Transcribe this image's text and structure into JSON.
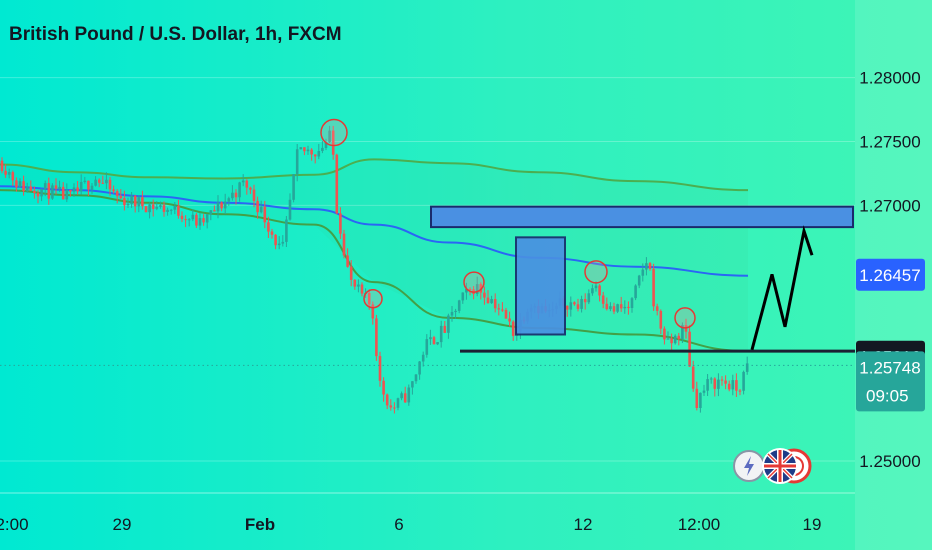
{
  "title": "British Pound / U.S. Dollar, 1h, FXCM",
  "chart_data": {
    "type": "candlestick",
    "title": "British Pound / U.S. Dollar, 1h, FXCM",
    "symbol": "GBPUSD",
    "timeframe": "1h",
    "ylim": [
      1.2475,
      1.282
    ],
    "y_ticks": [
      "1.28000",
      "1.27500",
      "1.27000",
      "1.25000"
    ],
    "y_tick_values": [
      1.28,
      1.275,
      1.27,
      1.25
    ],
    "x_ticks": [
      "2:00",
      "29",
      "Feb",
      "6",
      "12",
      "12:00",
      "19"
    ],
    "price_tags": [
      {
        "label": "1.26457",
        "value": 1.26457,
        "color": "#2962ff"
      },
      {
        "label": "1.25816",
        "value": 1.25816,
        "color": "#131722"
      },
      {
        "label": "1.25748",
        "value": 1.25748,
        "color": "#26a69a",
        "countdown": "09:05"
      }
    ],
    "last_price": 1.25748,
    "ma_lines": [
      {
        "color": "#4caf50",
        "points": [
          [
            1.2732,
            0.0
          ],
          [
            1.2726,
            0.1
          ],
          [
            1.2722,
            0.2
          ],
          [
            1.2721,
            0.3
          ],
          [
            1.2724,
            0.42
          ],
          [
            1.2736,
            0.5
          ],
          [
            1.2733,
            0.6
          ],
          [
            1.2726,
            0.72
          ],
          [
            1.2719,
            0.85
          ],
          [
            1.2712,
            1.0
          ]
        ]
      },
      {
        "color": "#2962ff",
        "points": [
          [
            1.2715,
            0.0
          ],
          [
            1.2712,
            0.1
          ],
          [
            1.2707,
            0.2
          ],
          [
            1.2702,
            0.3
          ],
          [
            1.2697,
            0.42
          ],
          [
            1.2685,
            0.5
          ],
          [
            1.2671,
            0.6
          ],
          [
            1.2659,
            0.72
          ],
          [
            1.2652,
            0.85
          ],
          [
            1.2645,
            1.0
          ]
        ]
      },
      {
        "color": "#43a047",
        "points": [
          [
            1.2712,
            0.0
          ],
          [
            1.2708,
            0.1
          ],
          [
            1.2702,
            0.2
          ],
          [
            1.2693,
            0.3
          ],
          [
            1.2685,
            0.42
          ],
          [
            1.264,
            0.5
          ],
          [
            1.2612,
            0.6
          ],
          [
            1.2604,
            0.72
          ],
          [
            1.2599,
            0.85
          ],
          [
            1.2586,
            1.0
          ]
        ]
      }
    ],
    "annotations": {
      "resistance_zone": [
        1.2683,
        1.2699
      ],
      "consolidation_box": [
        1.2599,
        1.2675
      ],
      "support_line": 1.2586,
      "forecast_path": [
        1.2587,
        1.2646,
        1.2605,
        1.268,
        1.2661
      ]
    }
  }
}
